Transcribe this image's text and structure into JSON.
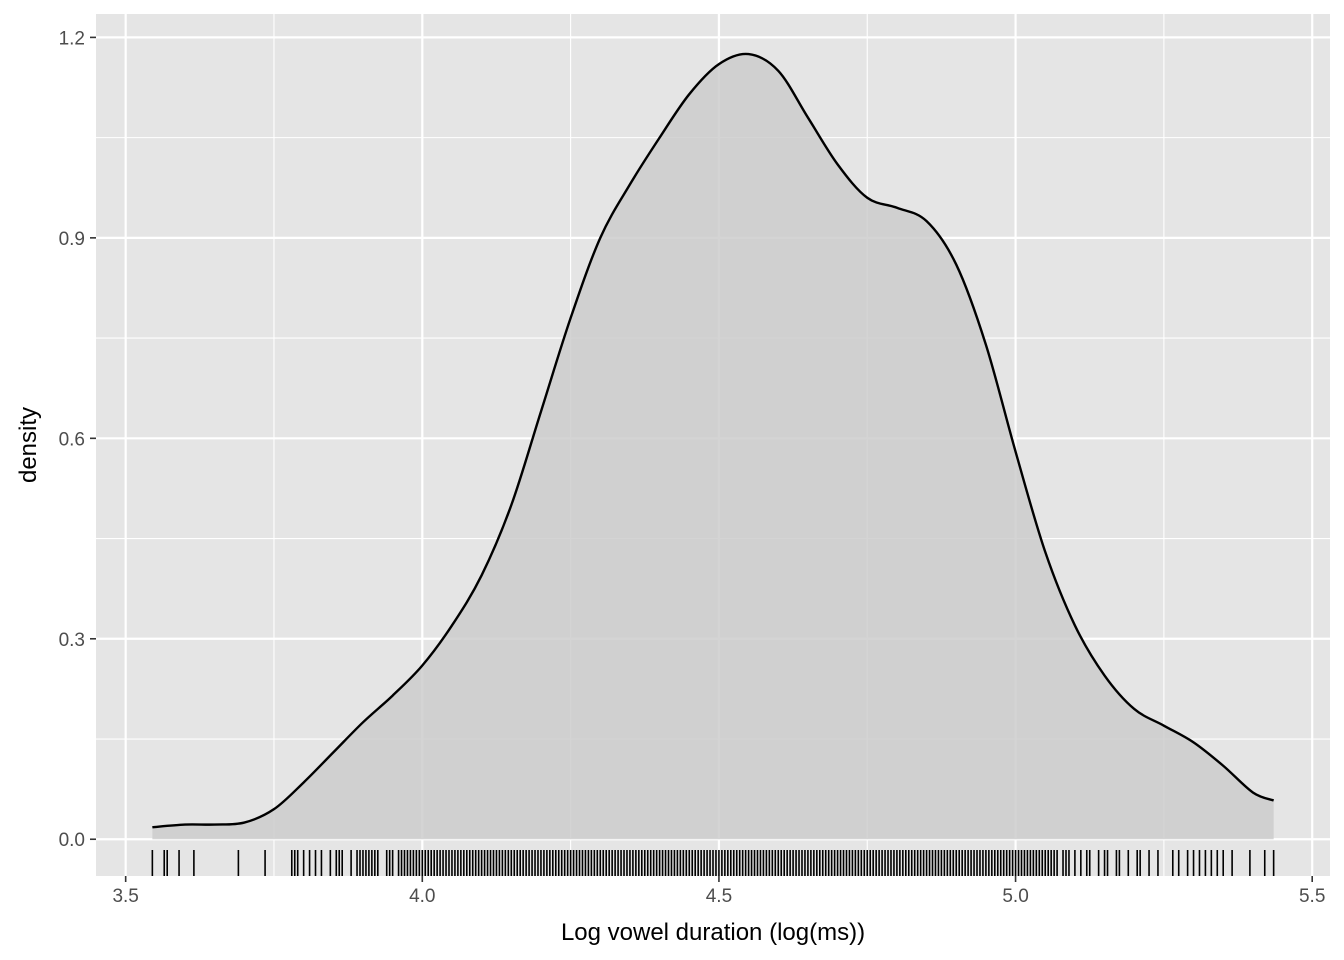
{
  "chart_data": {
    "type": "area",
    "title": "",
    "xlabel": "Log vowel duration (log(ms))",
    "ylabel": "density",
    "xlim": [
      3.45,
      5.53
    ],
    "ylim": [
      -0.055,
      1.235
    ],
    "x_ticks": [
      "3.5",
      "4.0",
      "4.5",
      "5.0",
      "5.5"
    ],
    "y_ticks": [
      "0.0",
      "0.3",
      "0.6",
      "0.9",
      "1.2"
    ],
    "x_tick_values": [
      3.5,
      4.0,
      4.5,
      5.0,
      5.5
    ],
    "y_tick_values": [
      0.0,
      0.3,
      0.6,
      0.9,
      1.2
    ],
    "grid": true,
    "legend": "none",
    "colors": {
      "panel": "#e5e5e5",
      "grid": "#ffffff",
      "fill": "#cccccc",
      "line": "#000000",
      "rug": "#000000",
      "tick_text": "#4d4d4d",
      "axis_title": "#000000"
    },
    "density": {
      "x": [
        3.545,
        3.6,
        3.65,
        3.7,
        3.75,
        3.8,
        3.85,
        3.9,
        3.95,
        4.0,
        4.05,
        4.1,
        4.15,
        4.2,
        4.25,
        4.3,
        4.35,
        4.4,
        4.45,
        4.5,
        4.55,
        4.6,
        4.65,
        4.7,
        4.75,
        4.8,
        4.85,
        4.9,
        4.95,
        5.0,
        5.05,
        5.1,
        5.15,
        5.2,
        5.25,
        5.3,
        5.35,
        5.4,
        5.435
      ],
      "y": [
        0.018,
        0.022,
        0.022,
        0.025,
        0.045,
        0.085,
        0.13,
        0.175,
        0.215,
        0.26,
        0.32,
        0.395,
        0.5,
        0.64,
        0.78,
        0.9,
        0.98,
        1.05,
        1.115,
        1.16,
        1.175,
        1.15,
        1.08,
        1.01,
        0.96,
        0.945,
        0.925,
        0.86,
        0.74,
        0.58,
        0.43,
        0.32,
        0.245,
        0.195,
        0.17,
        0.145,
        0.11,
        0.07,
        0.058
      ]
    },
    "rug": [
      3.545,
      3.565,
      3.57,
      3.59,
      3.615,
      3.69,
      3.735,
      3.78,
      3.785,
      3.79,
      3.8,
      3.81,
      3.82,
      3.83,
      3.845,
      3.855,
      3.86,
      3.865,
      3.88,
      3.89,
      3.895,
      3.9,
      3.905,
      3.91,
      3.915,
      3.92,
      3.925,
      3.94,
      3.945,
      3.95,
      3.96,
      3.965,
      3.97,
      3.975,
      3.98,
      3.985,
      3.99,
      3.995,
      4.0,
      4.005,
      4.01,
      4.015,
      4.02,
      4.025,
      4.03,
      4.035,
      4.04,
      4.045,
      4.05,
      4.055,
      4.06,
      4.065,
      4.07,
      4.075,
      4.08,
      4.085,
      4.09,
      4.095,
      4.1,
      4.105,
      4.11,
      4.115,
      4.12,
      4.125,
      4.13,
      4.135,
      4.14,
      4.145,
      4.15,
      4.155,
      4.16,
      4.165,
      4.17,
      4.175,
      4.18,
      4.185,
      4.19,
      4.195,
      4.2,
      4.205,
      4.21,
      4.215,
      4.22,
      4.225,
      4.23,
      4.235,
      4.24,
      4.245,
      4.25,
      4.255,
      4.26,
      4.265,
      4.27,
      4.275,
      4.28,
      4.285,
      4.29,
      4.295,
      4.3,
      4.305,
      4.31,
      4.315,
      4.32,
      4.325,
      4.33,
      4.335,
      4.34,
      4.345,
      4.35,
      4.355,
      4.36,
      4.365,
      4.37,
      4.375,
      4.38,
      4.385,
      4.39,
      4.395,
      4.4,
      4.405,
      4.41,
      4.415,
      4.42,
      4.425,
      4.43,
      4.435,
      4.44,
      4.445,
      4.45,
      4.455,
      4.46,
      4.465,
      4.47,
      4.475,
      4.48,
      4.485,
      4.49,
      4.495,
      4.5,
      4.505,
      4.51,
      4.515,
      4.52,
      4.525,
      4.53,
      4.535,
      4.54,
      4.545,
      4.55,
      4.555,
      4.56,
      4.565,
      4.57,
      4.575,
      4.58,
      4.585,
      4.59,
      4.595,
      4.6,
      4.605,
      4.61,
      4.615,
      4.62,
      4.625,
      4.63,
      4.635,
      4.64,
      4.645,
      4.65,
      4.655,
      4.66,
      4.665,
      4.67,
      4.675,
      4.68,
      4.685,
      4.69,
      4.695,
      4.7,
      4.705,
      4.71,
      4.715,
      4.72,
      4.725,
      4.73,
      4.735,
      4.74,
      4.745,
      4.75,
      4.755,
      4.76,
      4.765,
      4.77,
      4.775,
      4.78,
      4.785,
      4.79,
      4.795,
      4.8,
      4.805,
      4.81,
      4.815,
      4.82,
      4.825,
      4.83,
      4.835,
      4.84,
      4.845,
      4.85,
      4.855,
      4.86,
      4.865,
      4.87,
      4.875,
      4.88,
      4.885,
      4.89,
      4.895,
      4.9,
      4.905,
      4.91,
      4.915,
      4.92,
      4.925,
      4.93,
      4.935,
      4.94,
      4.945,
      4.95,
      4.955,
      4.96,
      4.965,
      4.97,
      4.975,
      4.98,
      4.985,
      4.99,
      4.995,
      5.0,
      5.005,
      5.01,
      5.015,
      5.02,
      5.025,
      5.03,
      5.035,
      5.04,
      5.045,
      5.05,
      5.055,
      5.06,
      5.065,
      5.07,
      5.08,
      5.085,
      5.09,
      5.1,
      5.11,
      5.12,
      5.125,
      5.14,
      5.15,
      5.155,
      5.17,
      5.175,
      5.19,
      5.205,
      5.21,
      5.225,
      5.24,
      5.265,
      5.275,
      5.29,
      5.3,
      5.31,
      5.32,
      5.33,
      5.34,
      5.35,
      5.365,
      5.395,
      5.42,
      5.435
    ]
  }
}
